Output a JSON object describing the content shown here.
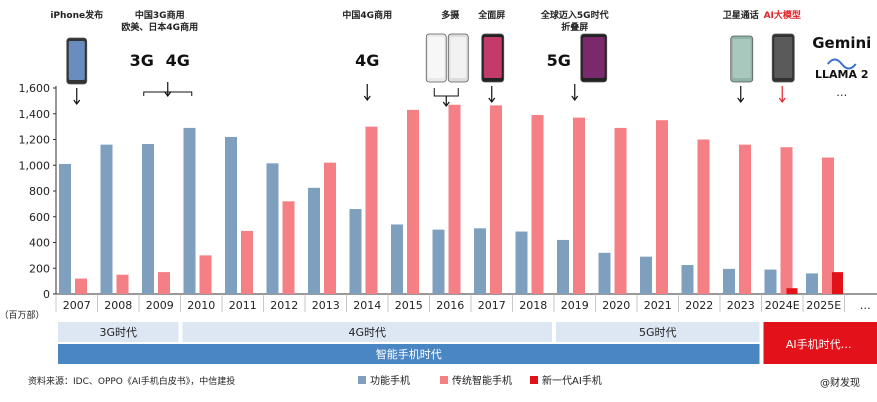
{
  "colors": {
    "feature_phone": "#7f9fbf",
    "traditional_smartphone": "#f47f84",
    "new_ai_phone": "#e3121a",
    "era_band_light": "#dde7f3",
    "era_band_smart": "#4a86c2",
    "era_band_ai": "#e3121a"
  },
  "chart_data": {
    "type": "bar",
    "unit_label": "（百万部）",
    "categories": [
      "2007",
      "2008",
      "2009",
      "2010",
      "2011",
      "2012",
      "2013",
      "2014",
      "2015",
      "2016",
      "2017",
      "2018",
      "2019",
      "2020",
      "2021",
      "2022",
      "2023",
      "2024E",
      "2025E",
      "…"
    ],
    "ylim": [
      0,
      1600
    ],
    "yticks": [
      "0",
      "200",
      "400",
      "600",
      "800",
      "1,000",
      "1,200",
      "1,400",
      "1,600"
    ],
    "ytick_values": [
      0,
      200,
      400,
      600,
      800,
      1000,
      1200,
      1400,
      1600
    ],
    "series": [
      {
        "name": "功能手机",
        "values": [
          1010,
          1160,
          1165,
          1290,
          1220,
          1015,
          825,
          660,
          540,
          500,
          510,
          485,
          420,
          320,
          290,
          225,
          195,
          190,
          160,
          null
        ]
      },
      {
        "name": "传统智能手机",
        "values": [
          120,
          150,
          170,
          300,
          490,
          720,
          1020,
          1300,
          1430,
          1470,
          1465,
          1390,
          1370,
          1290,
          1350,
          1200,
          1160,
          1140,
          1060,
          null
        ]
      },
      {
        "name": "新一代AI手机",
        "values": [
          null,
          null,
          null,
          null,
          null,
          null,
          null,
          null,
          null,
          null,
          null,
          null,
          null,
          null,
          null,
          null,
          null,
          45,
          170,
          null
        ]
      }
    ],
    "grid": false,
    "legend": "bottom"
  },
  "annotations": [
    {
      "id": "iphone",
      "lines": [
        "iPhone发布"
      ],
      "cat": 0,
      "icon": "iphone-icon"
    },
    {
      "id": "china3g",
      "lines": [
        "中国3G商用",
        "欧美、日本4G商用"
      ],
      "cat": 2,
      "icon": "3g-4g-icon",
      "tags": [
        "3G",
        "4G"
      ]
    },
    {
      "id": "china4g",
      "lines": [
        "中国4G商用"
      ],
      "cat": 7,
      "icon": "4g-icon",
      "tags": [
        "4G"
      ]
    },
    {
      "id": "multicam",
      "lines": [
        "多摄"
      ],
      "cat": 9,
      "icon": "multi-camera-phone-icon"
    },
    {
      "id": "fullscreen",
      "lines": [
        "全面屏"
      ],
      "cat": 10,
      "icon": "full-screen-phone-icon"
    },
    {
      "id": "g5",
      "lines": [
        "全球迈入5G时代",
        "折叠屏"
      ],
      "cat": 12,
      "icon": "5g-foldable-icon",
      "tags": [
        "5G"
      ]
    },
    {
      "id": "satellite",
      "lines": [
        "卫星通话"
      ],
      "cat": 16,
      "icon": "satellite-phone-icon"
    },
    {
      "id": "aimodel",
      "lines": [
        "AI大模型"
      ],
      "cat": 17,
      "icon": "ai-phone-icon"
    }
  ],
  "ai_logos": [
    "Gemini",
    "LLAMA 2",
    "…"
  ],
  "eras_top": [
    {
      "label": "3G时代",
      "from": 0,
      "to": 2
    },
    {
      "label": "4G时代",
      "from": 3,
      "to": 11
    },
    {
      "label": "5G时代",
      "from": 12,
      "to": 16
    }
  ],
  "era_smart": {
    "label": "智能手机时代",
    "from": 0,
    "to": 16
  },
  "era_ai": {
    "label": "AI手机时代…"
  },
  "source": "资料来源：IDC、OPPO《AI手机白皮书》，中信建投",
  "legend": [
    {
      "label": "功能手机",
      "series": 0
    },
    {
      "label": "传统智能手机",
      "series": 1
    },
    {
      "label": "新一代AI手机",
      "series": 2
    }
  ],
  "watermark": "@财发现"
}
